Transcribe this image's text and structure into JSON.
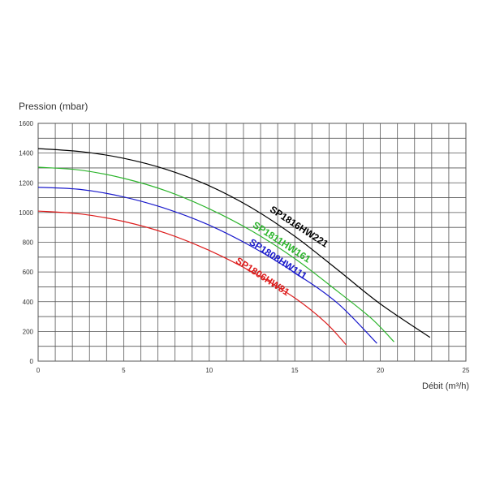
{
  "chart_data": {
    "type": "line",
    "title": "",
    "xlabel": "Débit (m³/h)",
    "ylabel": "Pression (mbar)",
    "xlim": [
      0,
      25
    ],
    "ylim": [
      0,
      1600
    ],
    "x_ticks": [
      0,
      5,
      10,
      15,
      20,
      25
    ],
    "y_ticks": [
      0,
      200,
      400,
      600,
      800,
      1000,
      1200,
      1400,
      1600
    ],
    "grid": true,
    "legend": "inline labels on curves",
    "series": [
      {
        "name": "SP1816HW221",
        "color": "#000000",
        "points": [
          [
            0,
            1430
          ],
          [
            2.5,
            1410
          ],
          [
            5,
            1365
          ],
          [
            7.5,
            1290
          ],
          [
            10,
            1180
          ],
          [
            12.5,
            1030
          ],
          [
            15,
            840
          ],
          [
            17.5,
            615
          ],
          [
            20,
            385
          ],
          [
            22.9,
            160
          ]
        ]
      },
      {
        "name": "SP1811HW161",
        "color": "#2db52d",
        "points": [
          [
            0,
            1305
          ],
          [
            2.5,
            1285
          ],
          [
            5,
            1230
          ],
          [
            7.5,
            1145
          ],
          [
            10,
            1025
          ],
          [
            12.5,
            875
          ],
          [
            15,
            690
          ],
          [
            17.5,
            470
          ],
          [
            19.5,
            285
          ],
          [
            20.8,
            130
          ]
        ]
      },
      {
        "name": "SP1808HW111",
        "color": "#1a1acc",
        "points": [
          [
            0,
            1170
          ],
          [
            2.5,
            1155
          ],
          [
            5,
            1105
          ],
          [
            7.5,
            1025
          ],
          [
            10,
            915
          ],
          [
            12.5,
            770
          ],
          [
            15,
            595
          ],
          [
            17.5,
            390
          ],
          [
            19.8,
            120
          ]
        ]
      },
      {
        "name": "SP1806HW81",
        "color": "#dd1c1c",
        "points": [
          [
            0,
            1010
          ],
          [
            2.5,
            990
          ],
          [
            5,
            940
          ],
          [
            7.5,
            860
          ],
          [
            10,
            745
          ],
          [
            12.5,
            600
          ],
          [
            15,
            425
          ],
          [
            16.8,
            260
          ],
          [
            18,
            110
          ]
        ]
      }
    ]
  }
}
